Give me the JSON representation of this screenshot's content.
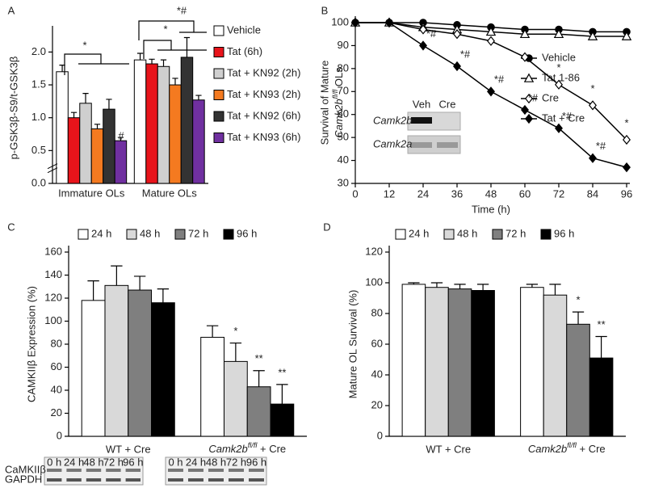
{
  "chart_data": [
    {
      "type": "bar",
      "panel": "A",
      "y_label": "p-GSK3β-S9/t-GSK3β",
      "categories": [
        "Immature OLs",
        "Mature OLs"
      ],
      "series": [
        {
          "name": "Vehicle",
          "color": "#ffffff",
          "values": [
            1.7,
            1.88
          ],
          "errors": [
            0.1,
            0.1
          ]
        },
        {
          "name": "Tat (6h)",
          "color": "#e8141b",
          "values": [
            1.0,
            1.82
          ],
          "errors": [
            0.08,
            0.07
          ]
        },
        {
          "name": "Tat + KN92 (2h)",
          "color": "#cfcfcf",
          "values": [
            1.22,
            1.78
          ],
          "errors": [
            0.15,
            0.1
          ]
        },
        {
          "name": "Tat + KN93 (2h)",
          "color": "#f47a20",
          "values": [
            0.83,
            1.5
          ],
          "errors": [
            0.07,
            0.1
          ]
        },
        {
          "name": "Tat + KN92 (6h)",
          "color": "#333333",
          "values": [
            1.13,
            1.92
          ],
          "errors": [
            0.15,
            0.3
          ]
        },
        {
          "name": "Tat + KN93 (6h)",
          "color": "#7030a0",
          "values": [
            0.65,
            1.27
          ],
          "errors": [
            0.05,
            0.07
          ]
        }
      ],
      "ylim": [
        0,
        2.3
      ],
      "yticks": [
        {
          "value": 0,
          "label": "0.0"
        },
        {
          "value": 0.5,
          "label": "0.5"
        },
        {
          "value": 1,
          "label": "1.0"
        },
        {
          "value": 1.5,
          "label": "1.5"
        },
        {
          "value": 2,
          "label": "2.0"
        }
      ],
      "annotations": [
        "*",
        "*#",
        "*",
        "#"
      ]
    },
    {
      "type": "line",
      "panel": "B",
      "x_label": "Time (h)",
      "y_label": [
        "Survival of Mature",
        [
          "Camk2b",
          "fl/fl",
          " OLs"
        ]
      ],
      "x": [
        0,
        12,
        24,
        36,
        48,
        60,
        72,
        84,
        96
      ],
      "series": [
        {
          "name": "Vehicle",
          "color": "#000000",
          "marker": "circle",
          "values": [
            100,
            100,
            100,
            99,
            98,
            97,
            97,
            96,
            96
          ]
        },
        {
          "name": "Tat 1-86",
          "color": "#000000",
          "marker": "triangle-open",
          "values": [
            100,
            100,
            98,
            97,
            96,
            95,
            95,
            94,
            94
          ]
        },
        {
          "name": "Cre",
          "color": "#000000",
          "marker": "diamond-open",
          "values": [
            100,
            100,
            97,
            95,
            92,
            85,
            73,
            64,
            49
          ]
        },
        {
          "name": "Tat + Cre",
          "color": "#000000",
          "marker": "diamond",
          "values": [
            100,
            100,
            90,
            81,
            70,
            62,
            54,
            41,
            37
          ]
        }
      ],
      "xlim": [
        0,
        96
      ],
      "xticks": [
        0,
        12,
        24,
        36,
        48,
        60,
        72,
        84,
        96
      ],
      "ylim": [
        30,
        100
      ],
      "yticks": [
        30,
        40,
        50,
        60,
        70,
        80,
        90,
        100
      ],
      "annotations": [
        "*#",
        "*#",
        "*#",
        "*#",
        "*#",
        "*#",
        "*",
        "*",
        "*"
      ],
      "inset_lanes": [
        "Veh",
        "Cre"
      ],
      "inset_rows": [
        "Camk2b",
        "Camk2a"
      ]
    },
    {
      "type": "bar",
      "panel": "C",
      "y_label": "CAMKIIβ Expression (%)",
      "categories": [
        "WT + Cre",
        [
          "Camk2b",
          "fl/fl",
          " + Cre"
        ]
      ],
      "series": [
        {
          "name": "24 h",
          "color": "#ffffff",
          "values": [
            118,
            86
          ],
          "errors": [
            17,
            10
          ]
        },
        {
          "name": "48 h",
          "color": "#d9d9d9",
          "values": [
            131,
            65
          ],
          "errors": [
            17,
            16
          ]
        },
        {
          "name": "72 h",
          "color": "#7f7f7f",
          "values": [
            127,
            43
          ],
          "errors": [
            12,
            14
          ]
        },
        {
          "name": "96 h",
          "color": "#000000",
          "values": [
            116,
            28
          ],
          "errors": [
            12,
            17
          ]
        }
      ],
      "ylim": [
        0,
        160
      ],
      "yticks": [
        0,
        20,
        40,
        60,
        80,
        100,
        120,
        140,
        160
      ],
      "annotations": [
        "*",
        "**",
        "**"
      ],
      "blot_rows": [
        "CaMKIIβ",
        "GAPDH"
      ],
      "blot_lanes": [
        "0 h",
        "24 h",
        "48 h",
        "72 h",
        "96 h"
      ]
    },
    {
      "type": "bar",
      "panel": "D",
      "y_label": "Mature OL Survival (%)",
      "categories": [
        "WT + Cre",
        [
          "Camk2b",
          "fl/fl",
          " + Cre"
        ]
      ],
      "series": [
        {
          "name": "24 h",
          "color": "#ffffff",
          "values": [
            99,
            97
          ],
          "errors": [
            1,
            2
          ]
        },
        {
          "name": "48 h",
          "color": "#d9d9d9",
          "values": [
            97,
            92
          ],
          "errors": [
            3,
            7
          ]
        },
        {
          "name": "72 h",
          "color": "#7f7f7f",
          "values": [
            96,
            73
          ],
          "errors": [
            3,
            8
          ]
        },
        {
          "name": "96 h",
          "color": "#000000",
          "values": [
            95,
            51
          ],
          "errors": [
            4,
            14
          ]
        }
      ],
      "ylim": [
        0,
        120
      ],
      "yticks": [
        0,
        20,
        40,
        60,
        80,
        100,
        120
      ],
      "annotations": [
        "*",
        "**"
      ]
    }
  ]
}
